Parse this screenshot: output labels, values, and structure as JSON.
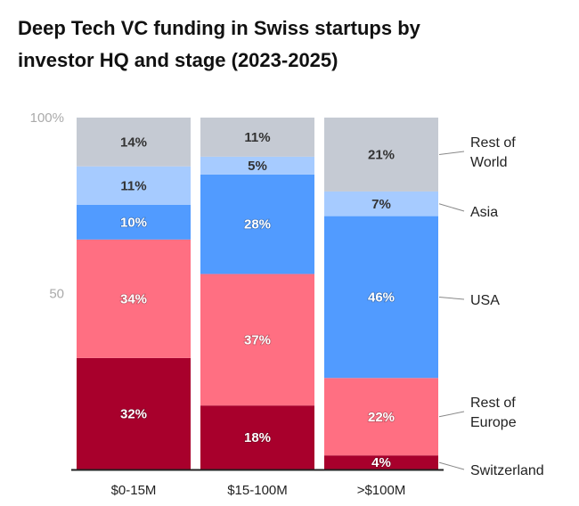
{
  "chart_data": {
    "type": "bar",
    "stacked": true,
    "title": "Deep Tech VC funding in Swiss startups by investor HQ and stage (2023-2025)",
    "title_lines": [
      "Deep Tech VC funding in Swiss startups by",
      "investor HQ and stage (2023-2025)"
    ],
    "categories": [
      "$0-15M",
      "$15-100M",
      ">$100M"
    ],
    "ylim": [
      0,
      100
    ],
    "yticks": [
      {
        "value": 100,
        "label": "100%"
      },
      {
        "value": 50,
        "label": "50"
      }
    ],
    "series": [
      {
        "name": "Switzerland",
        "legend_lines": [
          "Switzerland"
        ],
        "color": "#A8002C",
        "text_color": "#ffffff",
        "values": [
          32,
          18,
          4
        ]
      },
      {
        "name": "Rest of Europe",
        "legend_lines": [
          "Rest of",
          "Europe"
        ],
        "color": "#FF6F82",
        "text_color": "#ffffff",
        "values": [
          34,
          37,
          22
        ]
      },
      {
        "name": "USA",
        "legend_lines": [
          "USA"
        ],
        "color": "#519BFF",
        "text_color": "#ffffff",
        "values": [
          10,
          28,
          46
        ]
      },
      {
        "name": "Asia",
        "legend_lines": [
          "Asia"
        ],
        "color": "#A6CBFF",
        "text_color": "#333333",
        "values": [
          11,
          5,
          7
        ]
      },
      {
        "name": "Rest of World",
        "legend_lines": [
          "Rest of",
          "World"
        ],
        "color": "#C5CAD3",
        "text_color": "#333333",
        "values": [
          14,
          11,
          21
        ]
      }
    ],
    "value_suffix": "%",
    "legend_placement": "right (direct labels)",
    "grid": false
  }
}
